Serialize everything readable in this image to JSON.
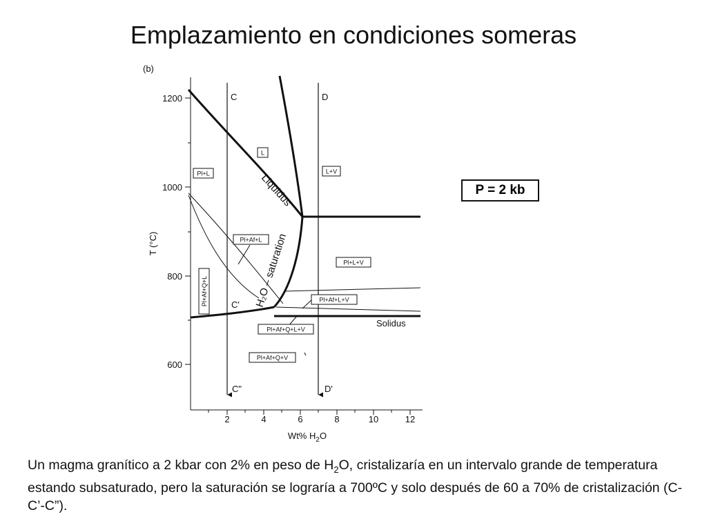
{
  "slide": {
    "title": "Emplazamiento en condiciones someras"
  },
  "figure": {
    "panel_label": "(b)",
    "y_axis": {
      "label": "T (°C)",
      "ticks": [
        "1200",
        "1000",
        "800",
        "600"
      ]
    },
    "x_axis": {
      "label_pre": "Wt% H",
      "label_sub": "2",
      "label_post": "O",
      "ticks": [
        "2",
        "4",
        "6",
        "8",
        "10",
        "12"
      ]
    },
    "path_labels": {
      "c_top": "C",
      "c_mid": "C'",
      "c_bot": "C\"",
      "d_top": "D",
      "d_bot": "D'"
    },
    "curve_labels": {
      "liquidus": "Liquidus",
      "h2o_saturation": "H₂O – saturation",
      "solidus": "Solidus"
    },
    "fields": {
      "l": "L",
      "pl_l": "Pl+L",
      "l_v": "L+V",
      "pl_af_l": "Pl+Af+L",
      "pl_l_v": "Pl+L+V",
      "pl_af_q_l": "Pl+Af+Q+L",
      "pl_af_l_v": "Pl+Af+L+V",
      "pl_af_q_l_v": "Pl+Af+Q+L+V",
      "pl_af_q_v": "Pl+Af+Q+V"
    },
    "pressure": "P = 2 kb"
  },
  "caption": {
    "part1": "Un magma granítico a 2 kbar con 2% en peso de H",
    "sub": "2",
    "part2": "O, cristalizaría en un intervalo grande de temperatura estando subsaturado, pero la saturación se lograría a 700ºC y solo después de 60 a 70% de cristalización (C-C’-C”)."
  }
}
